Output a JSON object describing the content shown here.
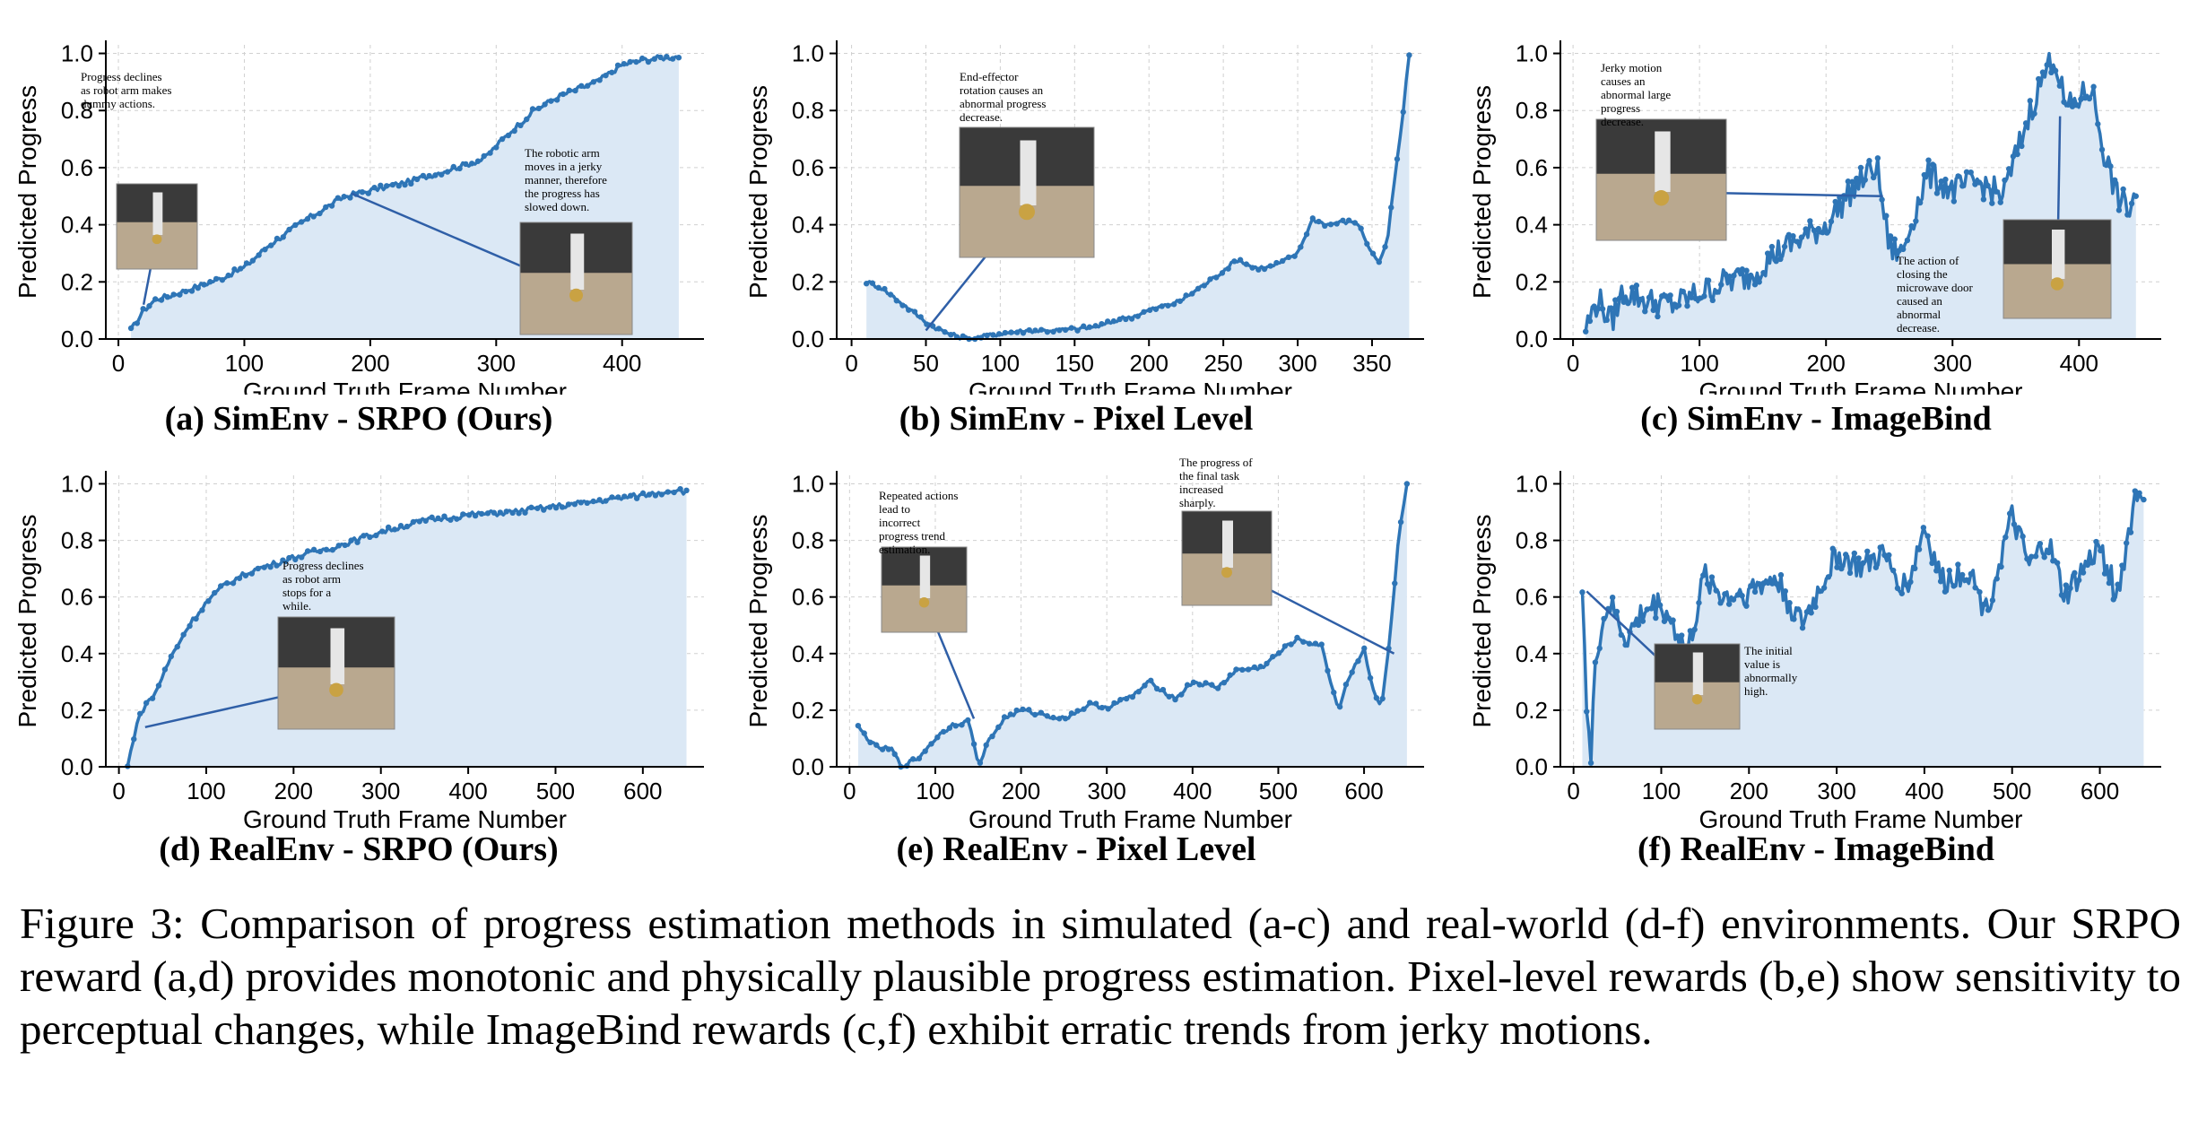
{
  "figure": {
    "caption": "Figure 3: Comparison of progress estimation methods in simulated (a-c) and real-world (d-f) environments. Our SRPO reward (a,d) provides monotonic and physically plausible progress estimation. Pixel-level rewards (b,e) show sensitivity to perceptual changes, while ImageBind rewards (c,f) exhibit erratic trends from jerky motions."
  },
  "colors": {
    "line": "#2e75b6",
    "fill": "#dbe8f5",
    "axis": "#000000",
    "grid": "#d0d0d0",
    "connector": "#2f5fa7"
  },
  "chart_data": [
    {
      "type": "line",
      "panel": "a",
      "title": "(a) SimEnv - SRPO (Ours)",
      "xlabel": "Ground Truth Frame Number",
      "ylabel": "Predicted Progress",
      "xlim": [
        -10,
        465
      ],
      "ylim": [
        0,
        1.03
      ],
      "xticks": [
        0,
        100,
        200,
        300,
        400
      ],
      "yticks": [
        0.0,
        0.2,
        0.4,
        0.6,
        0.8,
        1.0
      ],
      "x": [
        10,
        20,
        30,
        40,
        60,
        80,
        100,
        120,
        150,
        180,
        200,
        230,
        260,
        290,
        310,
        330,
        350,
        380,
        400,
        420,
        445
      ],
      "values": [
        0.03,
        0.1,
        0.14,
        0.15,
        0.18,
        0.21,
        0.25,
        0.33,
        0.42,
        0.5,
        0.52,
        0.55,
        0.59,
        0.63,
        0.72,
        0.8,
        0.85,
        0.9,
        0.96,
        0.98,
        0.99
      ],
      "annotations": [
        {
          "text": "Progress declines as robot arm makes dummy actions.",
          "x": 20,
          "y": 0.12
        },
        {
          "text": "The robotic arm moves in a jerky manner, therefore the progress has slowed down.",
          "x": 185,
          "y": 0.51
        }
      ]
    },
    {
      "type": "line",
      "panel": "b",
      "title": "(b) SimEnv - Pixel Level",
      "xlabel": "Ground Truth Frame Number",
      "ylabel": "Predicted Progress",
      "xlim": [
        -10,
        385
      ],
      "ylim": [
        0,
        1.03
      ],
      "xticks": [
        0,
        50,
        100,
        150,
        200,
        250,
        300,
        350
      ],
      "yticks": [
        0.0,
        0.2,
        0.4,
        0.6,
        0.8,
        1.0
      ],
      "x": [
        10,
        20,
        30,
        40,
        50,
        60,
        70,
        80,
        90,
        100,
        120,
        140,
        160,
        170,
        180,
        190,
        200,
        220,
        240,
        260,
        270,
        280,
        290,
        300,
        310,
        320,
        330,
        340,
        350,
        355,
        360,
        365,
        370,
        375
      ],
      "values": [
        0.2,
        0.18,
        0.14,
        0.1,
        0.06,
        0.03,
        0.01,
        0.0,
        0.01,
        0.02,
        0.03,
        0.03,
        0.04,
        0.05,
        0.07,
        0.08,
        0.1,
        0.13,
        0.2,
        0.28,
        0.25,
        0.25,
        0.27,
        0.3,
        0.42,
        0.4,
        0.41,
        0.41,
        0.3,
        0.27,
        0.33,
        0.55,
        0.75,
        1.0
      ],
      "annotations": [
        {
          "text": "End-effector rotation causes an abnormal progress decrease.",
          "x": 50,
          "y": 0.03
        }
      ]
    },
    {
      "type": "line",
      "panel": "c",
      "title": "(c) SimEnv - ImageBind",
      "xlabel": "Ground Truth Frame Number",
      "ylabel": "Predicted Progress",
      "xlim": [
        -10,
        465
      ],
      "ylim": [
        0,
        1.03
      ],
      "xticks": [
        0,
        100,
        200,
        300,
        400
      ],
      "yticks": [
        0.0,
        0.2,
        0.4,
        0.6,
        0.8,
        1.0
      ],
      "x": [
        10,
        20,
        30,
        40,
        60,
        80,
        100,
        120,
        140,
        160,
        180,
        200,
        220,
        240,
        250,
        260,
        280,
        300,
        320,
        340,
        360,
        370,
        380,
        390,
        400,
        410,
        420,
        430,
        440,
        445
      ],
      "values": [
        0.04,
        0.14,
        0.06,
        0.17,
        0.13,
        0.12,
        0.16,
        0.2,
        0.22,
        0.3,
        0.35,
        0.4,
        0.52,
        0.61,
        0.32,
        0.3,
        0.58,
        0.52,
        0.55,
        0.5,
        0.78,
        0.9,
        1.0,
        0.8,
        0.84,
        0.88,
        0.65,
        0.5,
        0.45,
        0.52
      ],
      "annotations": [
        {
          "text": "Jerky motion causes an abnormal large progress decrease.",
          "x": 245,
          "y": 0.5
        },
        {
          "text": "The action of closing the microwave door caused an abnormal decrease.",
          "x": 385,
          "y": 0.78
        }
      ]
    },
    {
      "type": "line",
      "panel": "d",
      "title": "(d) RealEnv - SRPO (Ours)",
      "xlabel": "Ground Truth Frame Number",
      "ylabel": "Predicted Progress",
      "xlim": [
        -15,
        670
      ],
      "ylim": [
        0,
        1.03
      ],
      "xticks": [
        0,
        100,
        200,
        300,
        400,
        500,
        600
      ],
      "yticks": [
        0.0,
        0.2,
        0.4,
        0.6,
        0.8,
        1.0
      ],
      "x": [
        10,
        20,
        30,
        40,
        50,
        60,
        80,
        100,
        120,
        150,
        180,
        200,
        250,
        300,
        350,
        400,
        450,
        500,
        550,
        600,
        640,
        650
      ],
      "values": [
        0.0,
        0.15,
        0.22,
        0.25,
        0.32,
        0.39,
        0.5,
        0.58,
        0.64,
        0.69,
        0.72,
        0.74,
        0.78,
        0.83,
        0.87,
        0.89,
        0.9,
        0.92,
        0.94,
        0.96,
        0.98,
        0.97
      ],
      "annotations": [
        {
          "text": "Progress declines as robot arm stops for a while.",
          "x": 30,
          "y": 0.14
        }
      ]
    },
    {
      "type": "line",
      "panel": "e",
      "title": "(e) RealEnv - Pixel Level",
      "xlabel": "Ground Truth Frame Number",
      "ylabel": "Predicted Progress",
      "xlim": [
        -15,
        670
      ],
      "ylim": [
        0,
        1.03
      ],
      "xticks": [
        0,
        100,
        200,
        300,
        400,
        500,
        600
      ],
      "yticks": [
        0.0,
        0.2,
        0.4,
        0.6,
        0.8,
        1.0
      ],
      "x": [
        10,
        30,
        50,
        60,
        80,
        100,
        120,
        140,
        150,
        160,
        180,
        200,
        250,
        280,
        300,
        330,
        350,
        380,
        400,
        430,
        450,
        480,
        500,
        520,
        550,
        570,
        580,
        600,
        610,
        620,
        630,
        640,
        650
      ],
      "values": [
        0.14,
        0.07,
        0.06,
        0.0,
        0.03,
        0.1,
        0.15,
        0.16,
        0.0,
        0.08,
        0.17,
        0.2,
        0.17,
        0.22,
        0.21,
        0.25,
        0.3,
        0.24,
        0.3,
        0.28,
        0.34,
        0.35,
        0.4,
        0.45,
        0.43,
        0.2,
        0.3,
        0.42,
        0.28,
        0.2,
        0.45,
        0.8,
        1.0
      ],
      "annotations": [
        {
          "text": "Repeated actions lead to incorrect progress trend estimation.",
          "x": 145,
          "y": 0.17
        },
        {
          "text": "The progress of the final task increased sharply.",
          "x": 635,
          "y": 0.4
        }
      ]
    },
    {
      "type": "line",
      "panel": "f",
      "title": "(f) RealEnv - ImageBind",
      "xlabel": "Ground Truth Frame Number",
      "ylabel": "Predicted Progress",
      "xlim": [
        -15,
        670
      ],
      "ylim": [
        0,
        1.03
      ],
      "xticks": [
        0,
        100,
        200,
        300,
        400,
        500,
        600
      ],
      "yticks": [
        0.0,
        0.2,
        0.4,
        0.6,
        0.8,
        1.0
      ],
      "x": [
        10,
        15,
        20,
        25,
        40,
        60,
        80,
        100,
        130,
        150,
        170,
        200,
        230,
        260,
        300,
        330,
        350,
        380,
        400,
        420,
        450,
        470,
        500,
        520,
        540,
        560,
        600,
        620,
        640,
        650
      ],
      "values": [
        0.66,
        0.2,
        0.0,
        0.4,
        0.58,
        0.45,
        0.55,
        0.58,
        0.4,
        0.68,
        0.6,
        0.62,
        0.67,
        0.5,
        0.75,
        0.7,
        0.75,
        0.63,
        0.85,
        0.65,
        0.7,
        0.55,
        0.88,
        0.7,
        0.8,
        0.6,
        0.78,
        0.6,
        0.95,
        0.98
      ],
      "annotations": [
        {
          "text": "The initial value is abnormally high.",
          "x": 15,
          "y": 0.62
        }
      ]
    }
  ]
}
